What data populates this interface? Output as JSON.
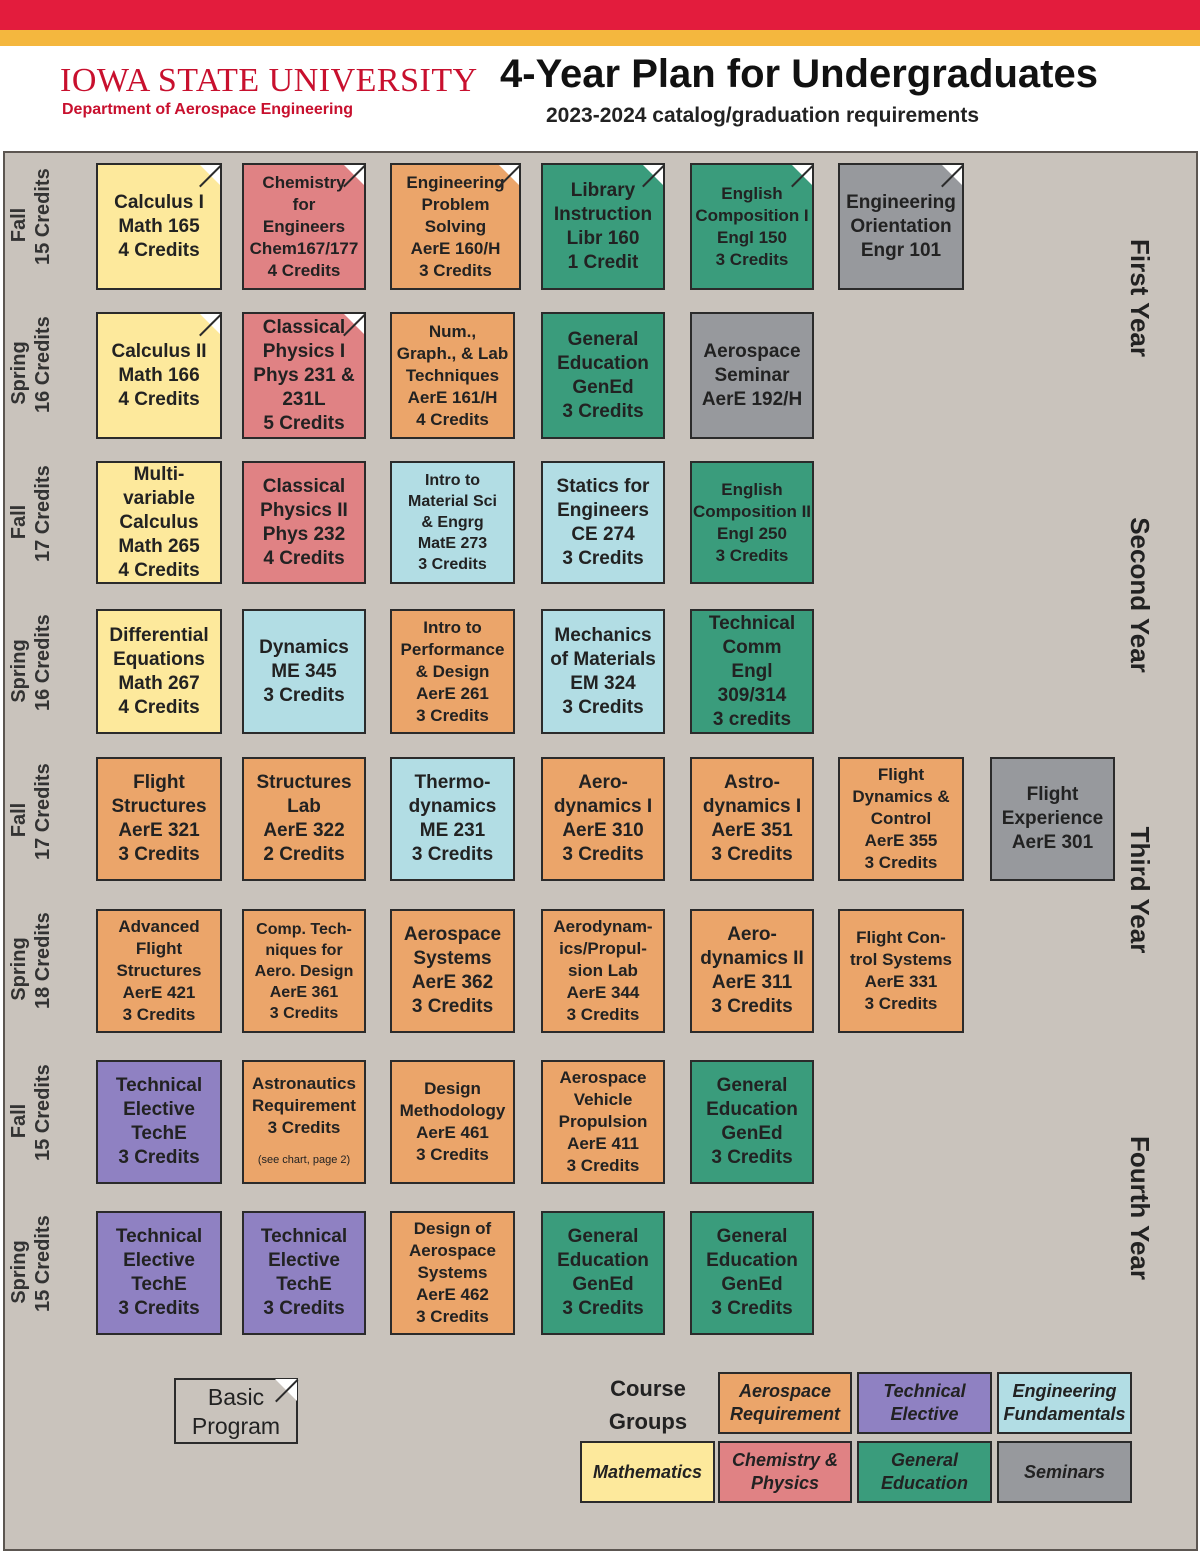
{
  "header": {
    "university": "IOWA STATE UNIVERSITY",
    "department": "Department of Aerospace Engineering",
    "title": "4-Year Plan for Undergraduates",
    "subtitle": "2023-2024 catalog/graduation requirements"
  },
  "years": [
    "First Year",
    "Second Year",
    "Third Year",
    "Fourth Year"
  ],
  "semesters": [
    {
      "term": "Fall",
      "credits": "15 Credits"
    },
    {
      "term": "Spring",
      "credits": "16 Credits"
    },
    {
      "term": "Fall",
      "credits": "17 Credits"
    },
    {
      "term": "Spring",
      "credits": "16 Credits"
    },
    {
      "term": "Fall",
      "credits": "17 Credits"
    },
    {
      "term": "Spring",
      "credits": "18 Credits"
    },
    {
      "term": "Fall",
      "credits": "15 Credits"
    },
    {
      "term": "Spring",
      "credits": "15 Credits"
    }
  ],
  "courses": {
    "calc1": [
      "Calculus I",
      "Math 165",
      "4 Credits"
    ],
    "chem": [
      "Chemistry",
      "for",
      "Engineers",
      "Chem167/177",
      "4 Credits"
    ],
    "eps": [
      "Engineering",
      "Problem",
      "Solving",
      "AerE 160/H",
      "3 Credits"
    ],
    "lib": [
      "Library",
      "Instruction",
      "Libr 160",
      "1 Credit"
    ],
    "engl150": [
      "English",
      "Composition I",
      "Engl 150",
      "3 Credits"
    ],
    "engr101": [
      "Engineering",
      "Orientation",
      "Engr 101"
    ],
    "calc2": [
      "Calculus II",
      "Math 166",
      "4 Credits"
    ],
    "phys1": [
      "Classical",
      "Physics I",
      "Phys 231 &",
      "231L",
      "5 Credits"
    ],
    "num": [
      "Num.,",
      "Graph., & Lab",
      "Techniques",
      "AerE 161/H",
      "4 Credits"
    ],
    "gen1": [
      "General",
      "Education",
      "GenEd",
      "3 Credits"
    ],
    "aeresem": [
      "Aerospace",
      "Seminar",
      "AerE 192/H"
    ],
    "calc3": [
      "Multi-",
      "variable",
      "Calculus",
      "Math 265",
      "4 Credits"
    ],
    "phys2": [
      "Classical",
      "Physics II",
      "Phys 232",
      "4 Credits"
    ],
    "matsci": [
      "Intro to",
      "Material Sci",
      "& Engrg",
      "MatE 273",
      "3 Credits"
    ],
    "statics": [
      "Statics for",
      "Engineers",
      "CE 274",
      "3 Credits"
    ],
    "engl250": [
      "English",
      "Composition II",
      "Engl 250",
      "3 Credits"
    ],
    "diffeq": [
      "Differential",
      "Equations",
      "Math 267",
      "4 Credits"
    ],
    "dyn": [
      "Dynamics",
      "ME 345",
      "3 Credits"
    ],
    "perf": [
      "Intro to",
      "Performance",
      "& Design",
      "AerE 261",
      "3 Credits"
    ],
    "mech": [
      "Mechanics",
      "of Materials",
      "EM 324",
      "3 Credits"
    ],
    "techcomm": [
      "Technical",
      "Comm",
      "Engl",
      "309/314",
      "3 credits"
    ],
    "flstruct": [
      "Flight",
      "Structures",
      "AerE 321",
      "3 Credits"
    ],
    "strlab": [
      "Structures",
      "Lab",
      "AerE 322",
      "2 Credits"
    ],
    "thermo": [
      "Thermo-",
      "dynamics",
      "ME 231",
      "3 Credits"
    ],
    "aero1": [
      "Aero-",
      "dynamics I",
      "AerE 310",
      "3 Credits"
    ],
    "astro": [
      "Astro-",
      "dynamics I",
      "AerE 351",
      "3 Credits"
    ],
    "fldyn": [
      "Flight",
      "Dynamics &",
      "Control",
      "AerE 355",
      "3 Credits"
    ],
    "flexp": [
      "Flight",
      "Experience",
      "AerE 301"
    ],
    "advstruct": [
      "Advanced",
      "Flight",
      "Structures",
      "AerE 421",
      "3 Credits"
    ],
    "comp": [
      "Comp. Tech-",
      "niques for",
      "Aero. Design",
      "AerE 361",
      "3 Credits"
    ],
    "aerosys": [
      "Aerospace",
      "Systems",
      "AerE 362",
      "3 Credits"
    ],
    "proplab": [
      "Aerodynam-",
      "ics/Propul-",
      "sion Lab",
      "AerE 344",
      "3 Credits"
    ],
    "aero2": [
      "Aero-",
      "dynamics II",
      "AerE 311",
      "3 Credits"
    ],
    "flctrl": [
      "Flight Con-",
      "trol Systems",
      "AerE 331",
      "3 Credits"
    ],
    "te1": [
      "Technical",
      "Elective",
      "TechE",
      "3 Credits"
    ],
    "astroreq": [
      "Astronautics",
      "Requirement",
      "3 Credits"
    ],
    "astroreq_note": "(see chart, page 2)",
    "design": [
      "Design",
      "Methodology",
      "AerE 461",
      "3 Credits"
    ],
    "propulsion": [
      "Aerospace",
      "Vehicle",
      "Propulsion",
      "AerE 411",
      "3 Credits"
    ],
    "gen2": [
      "General",
      "Education",
      "GenEd",
      "3 Credits"
    ],
    "te2": [
      "Technical",
      "Elective",
      "TechE",
      "3 Credits"
    ],
    "te3": [
      "Technical",
      "Elective",
      "TechE",
      "3 Credits"
    ],
    "design2": [
      "Design of",
      "Aerospace",
      "Systems",
      "AerE 462",
      "3 Credits"
    ],
    "gen3": [
      "General",
      "Education",
      "GenEd",
      "3 Credits"
    ],
    "gen4": [
      "General",
      "Education",
      "GenEd",
      "3 Credits"
    ]
  },
  "basic_program": [
    "Basic",
    "Program"
  ],
  "course_groups_label": [
    "Course",
    "Groups"
  ],
  "legend": {
    "aero": [
      "Aerospace",
      "Requirement"
    ],
    "tech": [
      "Technical",
      "Elective"
    ],
    "eng": [
      "Engineering",
      "Fundamentals"
    ],
    "math": [
      "Mathematics"
    ],
    "chem": [
      "Chemistry &",
      "Physics"
    ],
    "gened": [
      "General",
      "Education"
    ],
    "sem": [
      "Seminars"
    ]
  },
  "colors": {
    "top_stripe": "#e31c3d",
    "gold_stripe": "#f4b73e",
    "mathematics": "#fde99c",
    "chemistry_physics": "#e08284",
    "aerospace_requirement": "#eba56a",
    "general_education": "#3a9c7c",
    "seminars": "#97999d",
    "engineering_fundamentals": "#b2dde4",
    "technical_elective": "#8f81c2",
    "background": "#c9c3bc"
  }
}
